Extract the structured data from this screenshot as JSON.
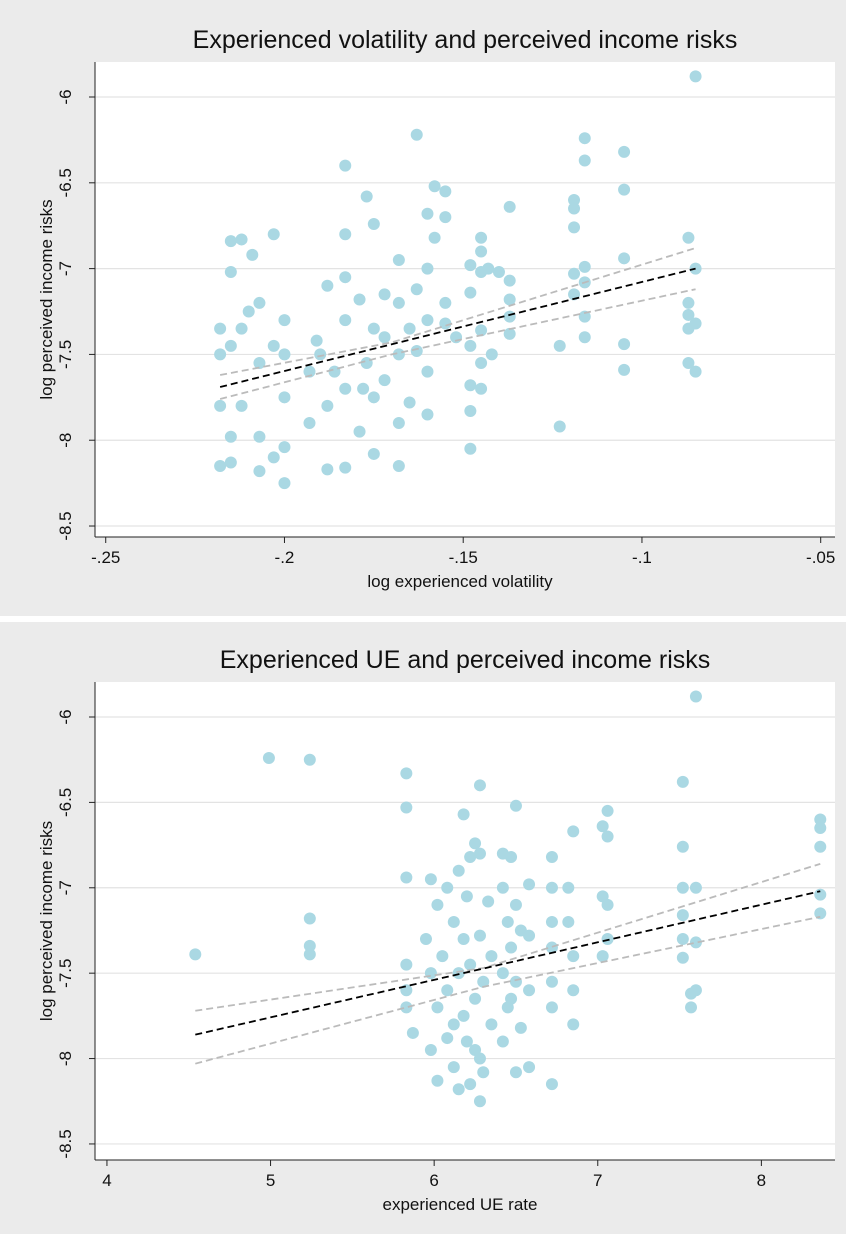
{
  "chart_data": [
    {
      "type": "scatter",
      "title": "Experienced volatility and perceived income risks",
      "xlabel": "log experienced volatility",
      "ylabel": "log perceived income risks",
      "xlim": [
        -0.253,
        -0.046
      ],
      "ylim": [
        -8.564,
        -5.796
      ],
      "xticks": [
        {
          "value": -0.25,
          "label": "-.25"
        },
        {
          "value": -0.2,
          "label": "-.2"
        },
        {
          "value": -0.15,
          "label": "-.15"
        },
        {
          "value": -0.1,
          "label": "-.1"
        },
        {
          "value": -0.05,
          "label": "-.05"
        }
      ],
      "yticks": [
        -8.5,
        -8,
        -7.5,
        -7,
        -6.5,
        -6
      ],
      "grid": true,
      "series": [
        {
          "mode": "markers",
          "color": "#aad8e3",
          "x": [
            -0.085,
            -0.085,
            -0.085,
            -0.085,
            -0.087,
            -0.087,
            -0.087,
            -0.087,
            -0.087,
            -0.105,
            -0.105,
            -0.105,
            -0.105,
            -0.105,
            -0.116,
            -0.116,
            -0.116,
            -0.116,
            -0.116,
            -0.116,
            -0.119,
            -0.119,
            -0.119,
            -0.119,
            -0.119,
            -0.123,
            -0.123,
            -0.137,
            -0.137,
            -0.137,
            -0.137,
            -0.137,
            -0.14,
            -0.142,
            -0.143,
            -0.145,
            -0.145,
            -0.145,
            -0.145,
            -0.145,
            -0.145,
            -0.148,
            -0.148,
            -0.148,
            -0.148,
            -0.148,
            -0.148,
            -0.155,
            -0.155,
            -0.155,
            -0.155,
            -0.158,
            -0.158,
            -0.16,
            -0.16,
            -0.16,
            -0.16,
            -0.16,
            -0.163,
            -0.163,
            -0.163,
            -0.165,
            -0.168,
            -0.168,
            -0.168,
            -0.168,
            -0.168,
            -0.172,
            -0.172,
            -0.172,
            -0.175,
            -0.175,
            -0.175,
            -0.175,
            -0.177,
            -0.177,
            -0.179,
            -0.179,
            -0.183,
            -0.183,
            -0.183,
            -0.183,
            -0.183,
            -0.183,
            -0.186,
            -0.188,
            -0.188,
            -0.188,
            -0.191,
            -0.193,
            -0.193,
            -0.2,
            -0.2,
            -0.2,
            -0.2,
            -0.2,
            -0.203,
            -0.203,
            -0.203,
            -0.207,
            -0.207,
            -0.207,
            -0.207,
            -0.212,
            -0.212,
            -0.212,
            -0.215,
            -0.215,
            -0.215,
            -0.215,
            -0.215,
            -0.218,
            -0.218,
            -0.218,
            -0.218,
            -0.209,
            -0.21,
            -0.19,
            -0.178,
            -0.165,
            -0.152
          ],
          "values": [
            -5.88,
            -7.0,
            -7.32,
            -7.6,
            -6.82,
            -7.2,
            -7.27,
            -7.35,
            -7.55,
            -6.32,
            -6.54,
            -6.94,
            -7.44,
            -7.59,
            -6.24,
            -6.37,
            -6.99,
            -7.08,
            -7.28,
            -7.4,
            -6.6,
            -6.65,
            -6.76,
            -7.03,
            -7.15,
            -7.45,
            -7.92,
            -6.64,
            -7.07,
            -7.18,
            -7.28,
            -7.38,
            -7.02,
            -7.5,
            -7.0,
            -6.82,
            -6.9,
            -7.02,
            -7.36,
            -7.55,
            -7.7,
            -6.98,
            -7.14,
            -7.45,
            -7.68,
            -7.83,
            -8.05,
            -6.55,
            -6.7,
            -7.2,
            -7.32,
            -6.52,
            -6.82,
            -6.68,
            -7.0,
            -7.3,
            -7.6,
            -7.85,
            -6.22,
            -7.12,
            -7.48,
            -7.78,
            -6.95,
            -7.2,
            -7.5,
            -7.9,
            -8.15,
            -7.15,
            -7.4,
            -7.65,
            -6.74,
            -7.35,
            -7.75,
            -8.08,
            -6.58,
            -7.55,
            -7.18,
            -7.95,
            -6.4,
            -6.8,
            -7.05,
            -7.3,
            -7.7,
            -8.16,
            -7.6,
            -7.1,
            -7.8,
            -8.17,
            -7.42,
            -7.6,
            -7.9,
            -7.3,
            -7.5,
            -7.75,
            -8.04,
            -8.25,
            -6.8,
            -7.45,
            -8.1,
            -7.2,
            -7.55,
            -7.98,
            -8.18,
            -6.83,
            -7.35,
            -7.8,
            -6.84,
            -7.02,
            -7.45,
            -7.98,
            -8.13,
            -7.35,
            -7.5,
            -7.8,
            -8.15,
            -6.92,
            -7.25,
            -7.5,
            -7.7,
            -7.35,
            -7.4
          ]
        },
        {
          "mode": "line",
          "color": "#bbbbbb",
          "dash": true,
          "x": [
            -0.218,
            -0.17,
            -0.085
          ],
          "values": [
            -7.62,
            -7.43,
            -6.88
          ]
        },
        {
          "mode": "line",
          "color": "#bbbbbb",
          "dash": true,
          "x": [
            -0.218,
            -0.17,
            -0.085
          ],
          "values": [
            -7.76,
            -7.5,
            -7.12
          ]
        },
        {
          "mode": "line",
          "color": "#000000",
          "dash": true,
          "x": [
            -0.218,
            -0.085
          ],
          "values": [
            -7.69,
            -7.0
          ]
        }
      ]
    },
    {
      "type": "scatter",
      "title": "Experienced UE and perceived income risks",
      "xlabel": "experienced UE rate",
      "ylabel": "log perceived income risks",
      "xlim": [
        3.927,
        8.45
      ],
      "ylim": [
        -8.594,
        -5.795
      ],
      "xticks": [
        4,
        5,
        6,
        7,
        8
      ],
      "yticks": [
        -8.5,
        -8,
        -7.5,
        -7,
        -6.5,
        -6
      ],
      "grid": true,
      "series": [
        {
          "mode": "markers",
          "color": "#aad8e3",
          "x": [
            4.54,
            4.99,
            5.24,
            5.24,
            5.24,
            5.24,
            5.83,
            5.83,
            5.83,
            5.83,
            5.83,
            5.83,
            5.87,
            5.95,
            5.98,
            5.98,
            5.98,
            6.02,
            6.02,
            6.02,
            6.05,
            6.08,
            6.08,
            6.08,
            6.12,
            6.12,
            6.12,
            6.15,
            6.15,
            6.15,
            6.18,
            6.18,
            6.18,
            6.2,
            6.2,
            6.22,
            6.22,
            6.22,
            6.25,
            6.25,
            6.25,
            6.28,
            6.28,
            6.28,
            6.28,
            6.28,
            6.3,
            6.3,
            6.33,
            6.35,
            6.35,
            6.42,
            6.42,
            6.42,
            6.42,
            6.45,
            6.45,
            6.47,
            6.47,
            6.47,
            6.5,
            6.5,
            6.5,
            6.5,
            6.53,
            6.53,
            6.58,
            6.58,
            6.58,
            6.58,
            6.72,
            6.72,
            6.72,
            6.72,
            6.72,
            6.72,
            6.72,
            6.82,
            6.82,
            6.85,
            6.85,
            6.85,
            6.85,
            7.03,
            7.03,
            7.03,
            7.06,
            7.06,
            7.06,
            7.06,
            7.52,
            7.52,
            7.52,
            7.52,
            7.52,
            7.52,
            7.57,
            7.57,
            7.6,
            7.6,
            7.6,
            7.6,
            8.36,
            8.36,
            8.36,
            8.36,
            8.36
          ],
          "values": [
            -7.39,
            -6.24,
            -6.25,
            -7.18,
            -7.34,
            -7.39,
            -6.33,
            -6.53,
            -6.94,
            -7.45,
            -7.6,
            -7.7,
            -7.85,
            -7.3,
            -6.95,
            -7.5,
            -7.95,
            -7.1,
            -7.7,
            -8.13,
            -7.4,
            -7.0,
            -7.6,
            -7.88,
            -7.2,
            -7.8,
            -8.05,
            -6.9,
            -7.5,
            -8.18,
            -6.57,
            -7.3,
            -7.75,
            -7.05,
            -7.9,
            -6.82,
            -7.45,
            -8.15,
            -6.74,
            -7.65,
            -7.95,
            -6.4,
            -6.8,
            -7.28,
            -8.0,
            -8.25,
            -7.55,
            -8.08,
            -7.08,
            -7.4,
            -7.8,
            -6.8,
            -7.0,
            -7.5,
            -7.9,
            -7.2,
            -7.7,
            -6.82,
            -7.35,
            -7.65,
            -6.52,
            -7.1,
            -7.55,
            -8.08,
            -7.25,
            -7.82,
            -6.98,
            -7.28,
            -7.6,
            -8.05,
            -6.82,
            -7.0,
            -7.2,
            -7.35,
            -7.55,
            -7.7,
            -8.15,
            -7.0,
            -7.2,
            -6.67,
            -7.4,
            -7.6,
            -7.8,
            -6.64,
            -7.05,
            -7.4,
            -6.55,
            -6.7,
            -7.1,
            -7.3,
            -6.38,
            -6.76,
            -7.0,
            -7.16,
            -7.3,
            -7.41,
            -7.62,
            -7.7,
            -5.88,
            -7.0,
            -7.32,
            -7.6,
            -6.6,
            -6.65,
            -6.76,
            -7.04,
            -7.15
          ]
        },
        {
          "mode": "line",
          "color": "#bbbbbb",
          "dash": true,
          "x": [
            4.54,
            6.3,
            8.36
          ],
          "values": [
            -7.72,
            -7.47,
            -6.86
          ]
        },
        {
          "mode": "line",
          "color": "#bbbbbb",
          "dash": true,
          "x": [
            4.54,
            6.3,
            8.36
          ],
          "values": [
            -8.03,
            -7.58,
            -7.17
          ]
        },
        {
          "mode": "line",
          "color": "#000000",
          "dash": true,
          "x": [
            4.54,
            8.36
          ],
          "values": [
            -7.86,
            -7.02
          ]
        }
      ]
    }
  ]
}
